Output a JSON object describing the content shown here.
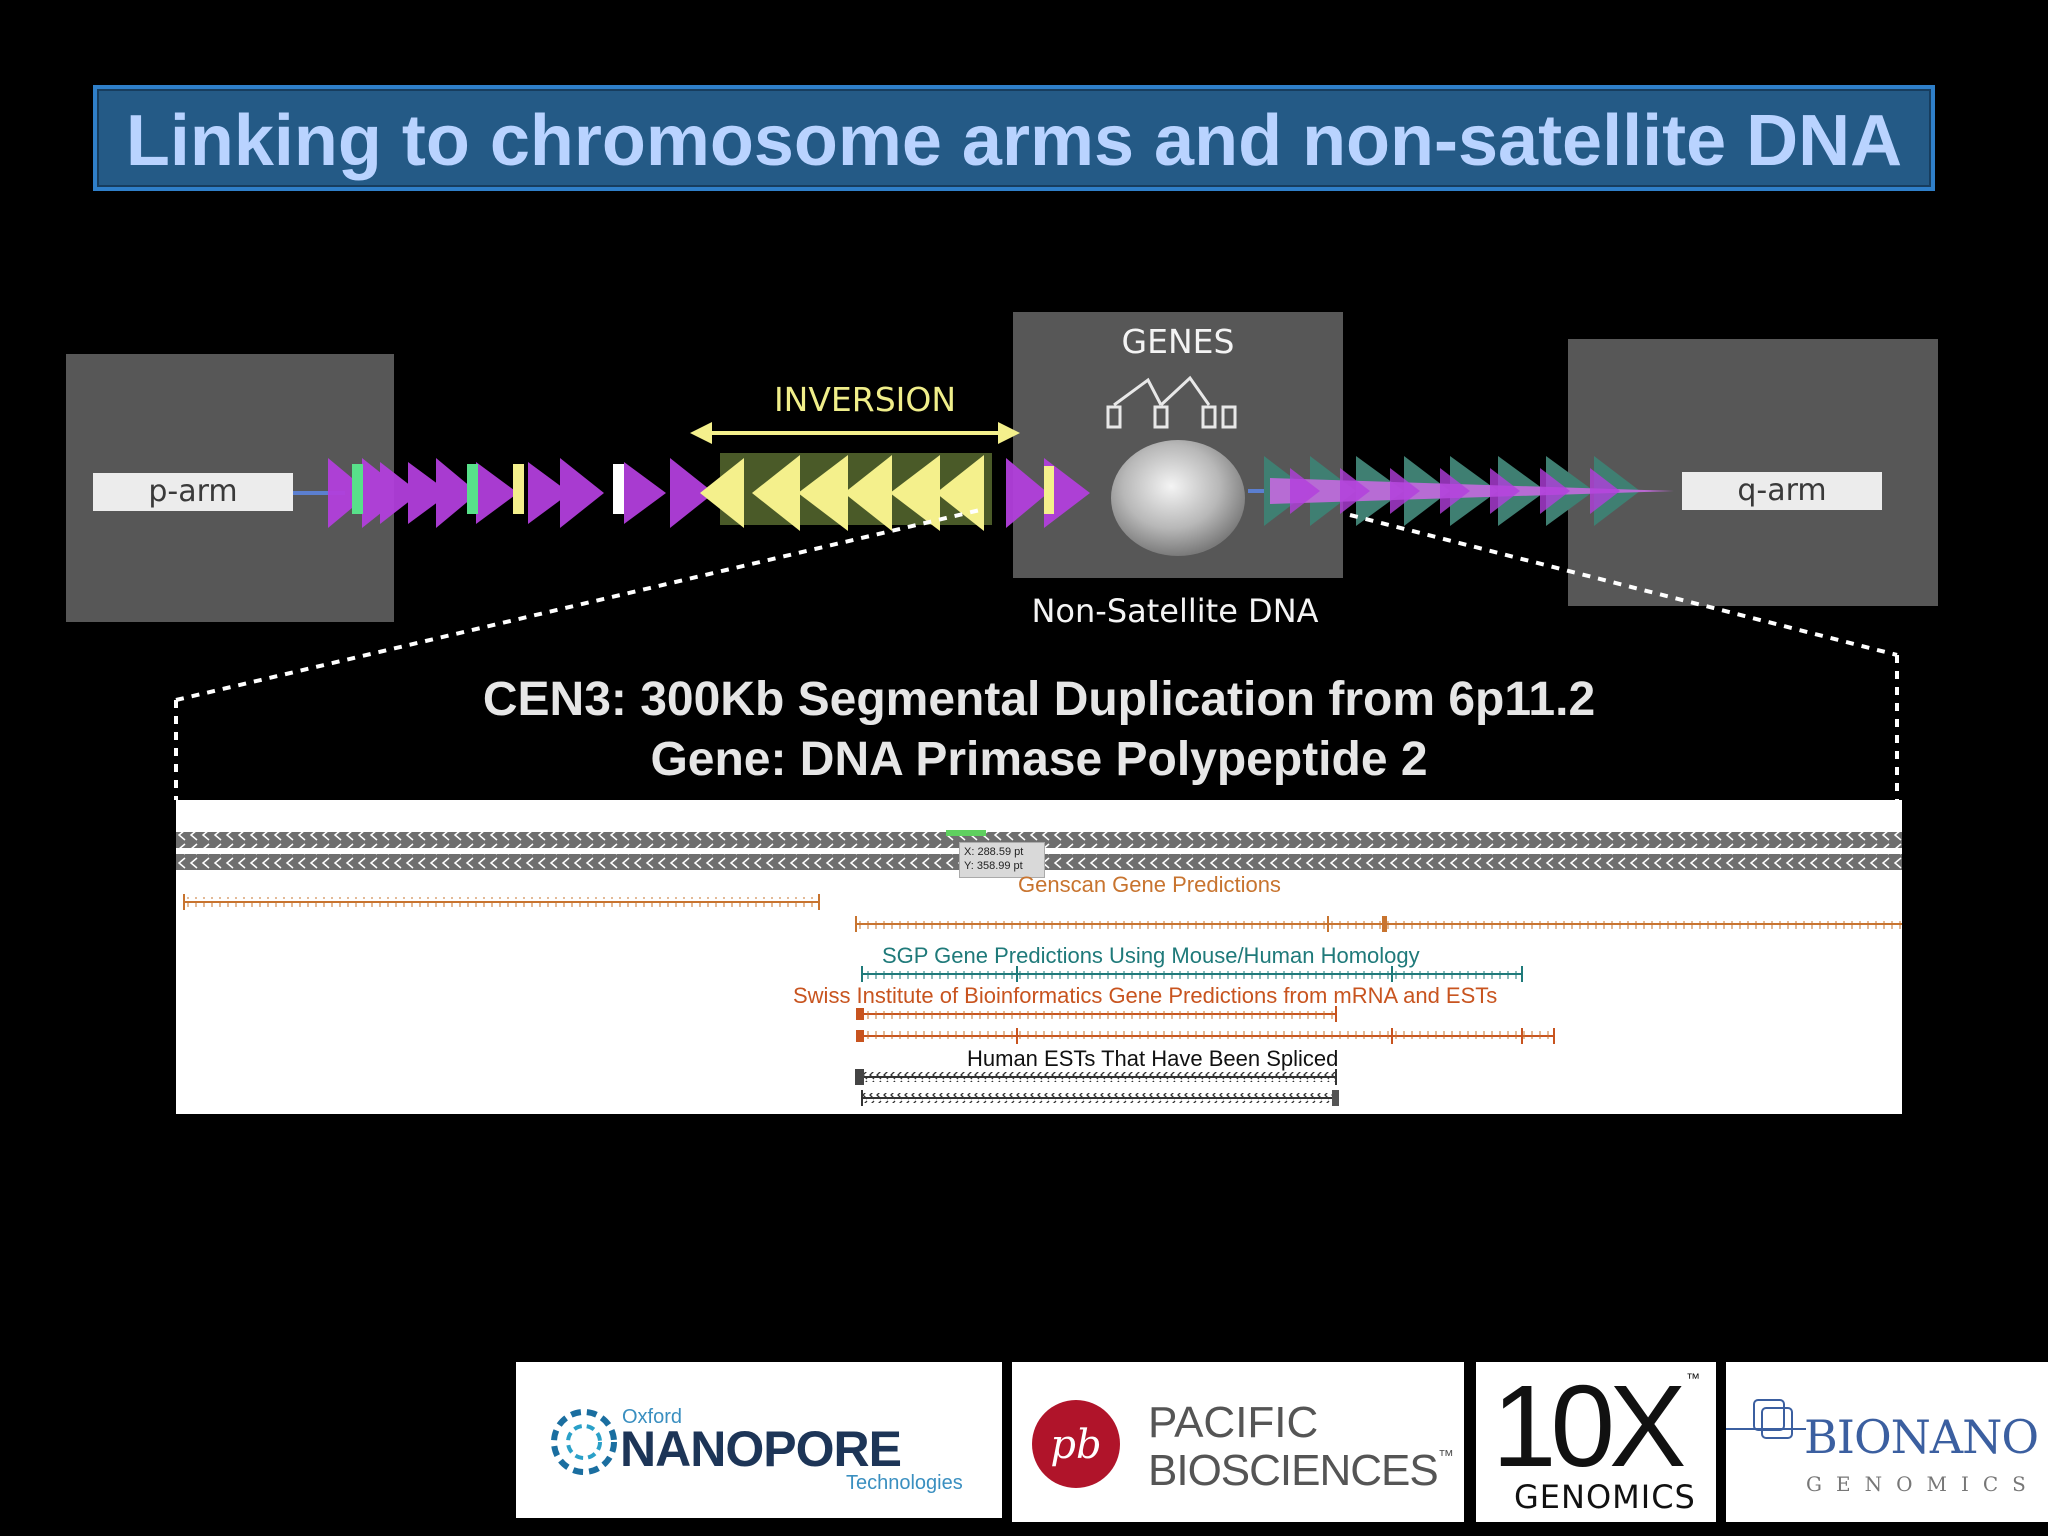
{
  "title": "Linking to chromosome arms and non-satellite DNA",
  "diagram": {
    "p_arm": "p-arm",
    "q_arm": "q-arm",
    "genes_label": "GENES",
    "inversion_label": "INVERSION",
    "non_satellite_label": "Non-Satellite DNA"
  },
  "caption": {
    "line1": "CEN3: 300Kb Segmental Duplication from 6p11.2",
    "line2": "Gene:  DNA Primase Polypeptide 2"
  },
  "browser": {
    "tooltip_x": "X: 288.59 pt",
    "tooltip_y": "Y: 358.99 pt",
    "tracks": {
      "genscan": "Genscan Gene Predictions",
      "sgp": "SGP Gene Predictions Using Mouse/Human Homology",
      "swiss": "Swiss Institute of Bioinformatics Gene Predictions from mRNA and ESTs",
      "ests": "Human ESTs That Have Been Spliced"
    }
  },
  "logos": {
    "nanopore_small": "Oxford",
    "nanopore_main": "NANOPORE",
    "nanopore_sub": "Technologies",
    "pacbio_line1": "PACIFIC",
    "pacbio_line2": "BIOSCIENCES",
    "pacbio_tm": "™",
    "tenx_main": "10X",
    "tenx_sub": "GENOMICS",
    "tenx_tm": "™",
    "bionano_main": "BIONANO",
    "bionano_sub": "GENOMICS"
  },
  "colors": {
    "title_text": "#b9d3ff",
    "title_border": "#2f7fc9",
    "purple_arrow": "#b23fdc",
    "inversion_arrow": "#f4f08c",
    "teal_arrow": "#3f7f72",
    "genscan": "#c8742f",
    "sgp": "#1f7a7a",
    "swiss": "#c8541f"
  }
}
